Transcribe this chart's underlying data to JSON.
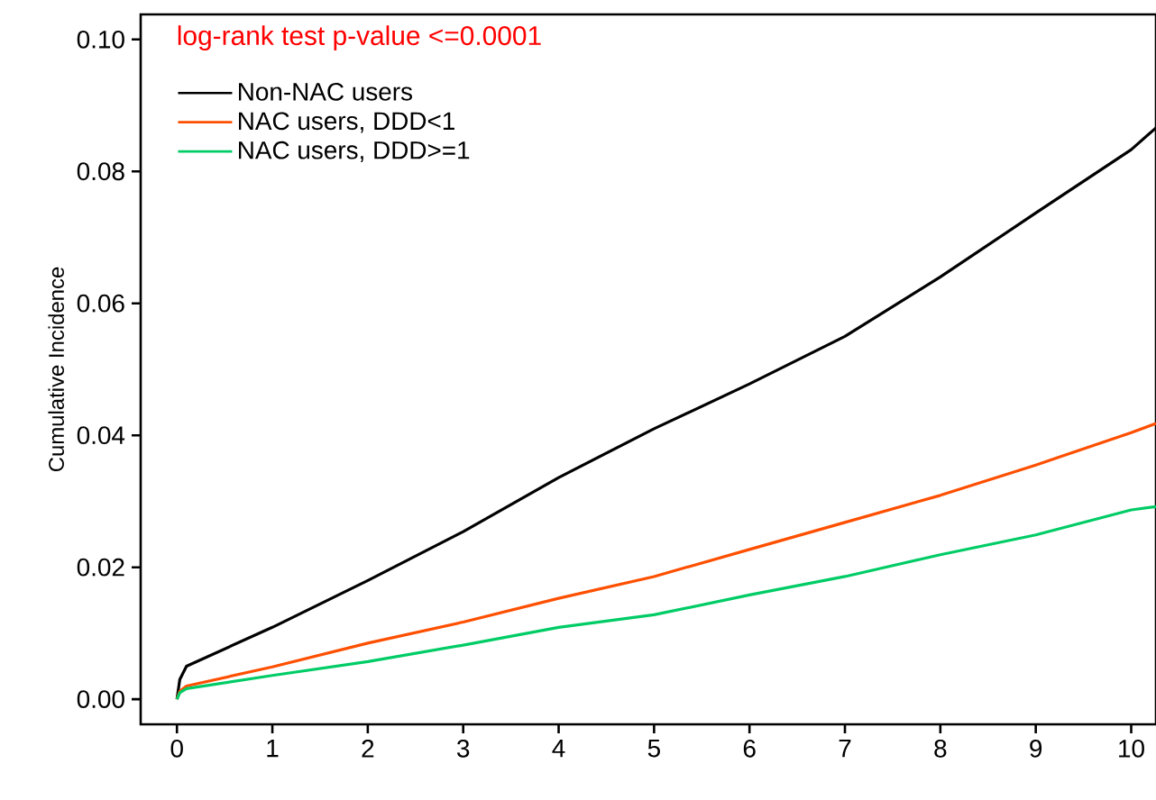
{
  "chart_data": {
    "type": "line",
    "ylabel": "Cumulative Incidence",
    "annotations": [
      "log-rank test p-value <=0.0001"
    ],
    "xlim": [
      -0.38,
      10.26
    ],
    "ylim": [
      -0.0038,
      0.1038
    ],
    "xticks": [
      0,
      1,
      2,
      3,
      4,
      5,
      6,
      7,
      8,
      9,
      10
    ],
    "yticks": [
      {
        "value": 0,
        "label": "0.00"
      },
      {
        "value": 0.02,
        "label": "0.02"
      },
      {
        "value": 0.04,
        "label": "0.04"
      },
      {
        "value": 0.06,
        "label": "0.06"
      },
      {
        "value": 0.08,
        "label": "0.08"
      },
      {
        "value": 0.1,
        "label": "0.10"
      }
    ],
    "x": [
      0,
      0.03,
      0.1,
      1,
      2,
      3,
      4,
      5,
      6,
      7,
      8,
      9,
      10,
      10.26
    ],
    "legend": "top left",
    "grid": false,
    "marker": "none",
    "line_style": "solid",
    "series": [
      {
        "name": "Non-NAC users",
        "color": "#000000",
        "values": [
          0,
          0.003,
          0.005,
          0.0109,
          0.018,
          0.0254,
          0.0336,
          0.041,
          0.0478,
          0.055,
          0.064,
          0.0737,
          0.0833,
          0.0866
        ]
      },
      {
        "name": "NAC users, DDD<1",
        "color": "#ff4f00",
        "values": [
          0,
          0.0012,
          0.002,
          0.0049,
          0.0085,
          0.0117,
          0.0153,
          0.0186,
          0.0227,
          0.0268,
          0.0309,
          0.0355,
          0.0404,
          0.0418
        ]
      },
      {
        "name": "NAC users, DDD>=1",
        "color": "#00cc66",
        "values": [
          0,
          0.001,
          0.0016,
          0.0036,
          0.0057,
          0.0082,
          0.0109,
          0.0128,
          0.0158,
          0.0186,
          0.0219,
          0.0249,
          0.0287,
          0.0292
        ]
      }
    ]
  }
}
